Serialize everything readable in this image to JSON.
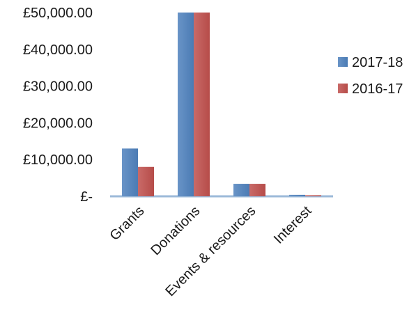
{
  "chart_data": {
    "type": "bar",
    "title": "",
    "xlabel": "",
    "ylabel": "",
    "categories": [
      "Grants",
      "Donations",
      "Events & resources",
      "Interest"
    ],
    "series": [
      {
        "name": "2017-18",
        "color": "#4F81BD",
        "values": [
          13000,
          50400,
          3400,
          400
        ]
      },
      {
        "name": "2016-17",
        "color": "#C0504D",
        "values": [
          8000,
          50400,
          3400,
          300
        ]
      }
    ],
    "ylim": [
      0,
      50000
    ],
    "y_ticks": [
      0,
      10000,
      20000,
      30000,
      40000,
      50000
    ],
    "y_tick_labels": [
      "£-",
      "£10,000.00",
      "£20,000.00",
      "£30,000.00",
      "£40,000.00",
      "£50,000.00"
    ],
    "grid": false,
    "legend_position": "right",
    "style": "3d-shaded"
  }
}
